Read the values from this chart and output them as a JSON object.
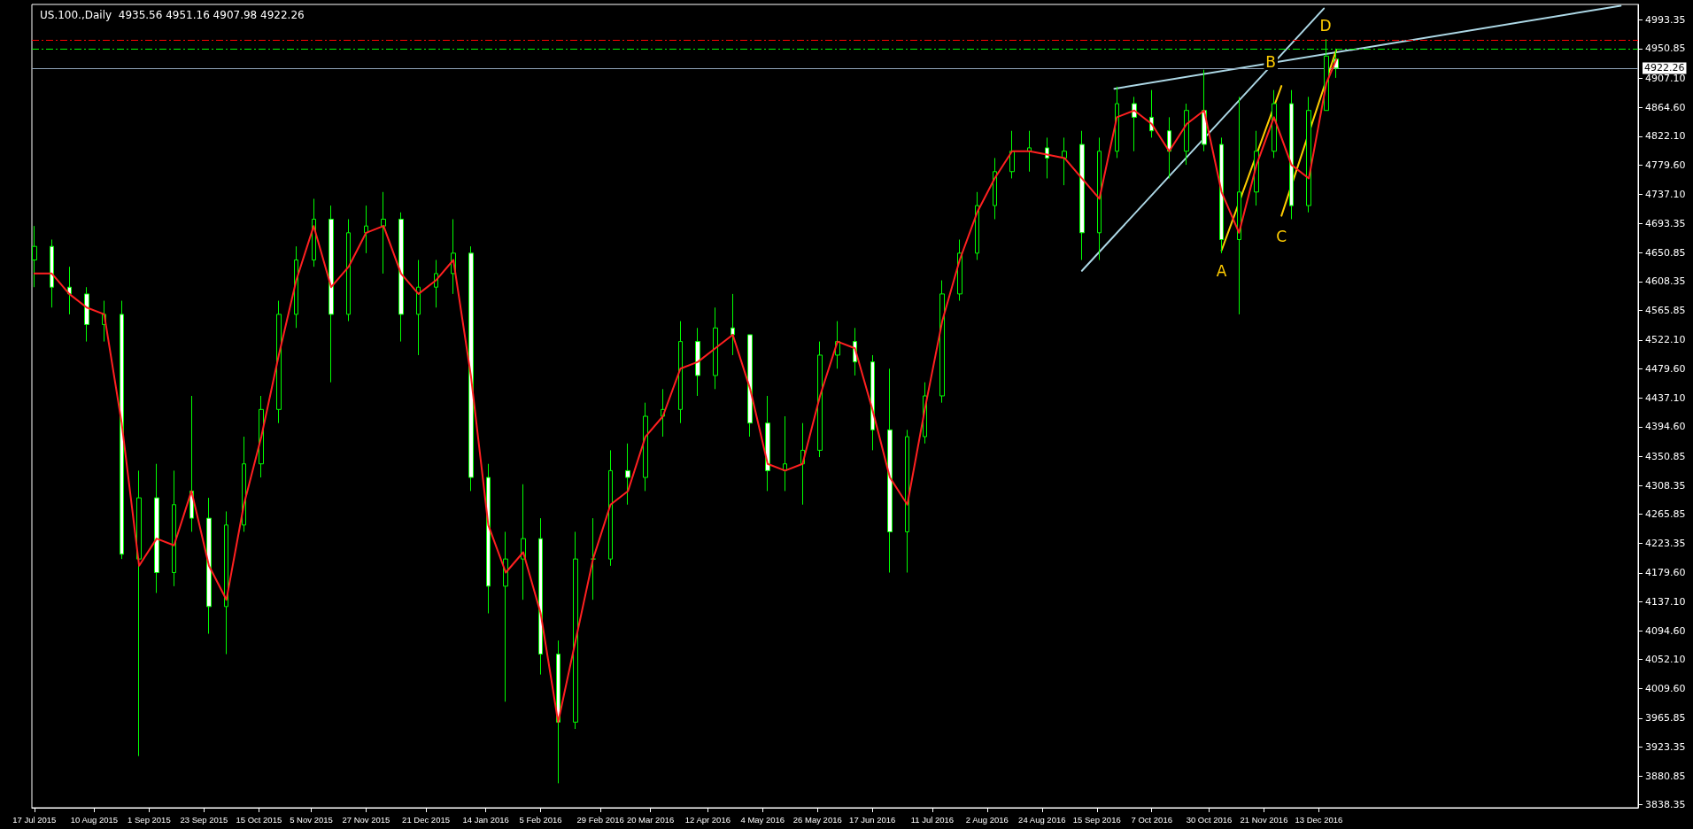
{
  "chart_data": {
    "type": "candlestick",
    "title": "US.100.,Daily  4935.56 4951.16 4907.98 4922.26",
    "color": "#00ff00",
    "x": [
      "2015-07-17",
      "2015-07-24",
      "2015-07-31",
      "2015-08-07",
      "2015-08-14",
      "2015-08-21",
      "2015-08-28",
      "2015-09-04",
      "2015-09-11",
      "2015-09-18",
      "2015-09-25",
      "2015-10-02",
      "2015-10-09",
      "2015-10-16",
      "2015-10-23",
      "2015-10-30",
      "2015-11-06",
      "2015-11-13",
      "2015-11-20",
      "2015-11-27",
      "2015-12-04",
      "2015-12-11",
      "2015-12-18",
      "2015-12-25",
      "2016-01-01",
      "2016-01-08",
      "2016-01-15",
      "2016-01-22",
      "2016-01-29",
      "2016-02-05",
      "2016-02-12",
      "2016-02-19",
      "2016-02-26",
      "2016-03-04",
      "2016-03-11",
      "2016-03-18",
      "2016-03-25",
      "2016-04-01",
      "2016-04-08",
      "2016-04-15",
      "2016-04-22",
      "2016-04-29",
      "2016-05-06",
      "2016-05-13",
      "2016-05-20",
      "2016-05-27",
      "2016-06-03",
      "2016-06-10",
      "2016-06-17",
      "2016-06-24",
      "2016-07-01",
      "2016-07-08",
      "2016-07-15",
      "2016-07-22",
      "2016-07-29",
      "2016-08-05",
      "2016-08-12",
      "2016-08-19",
      "2016-08-26",
      "2016-09-02",
      "2016-09-09",
      "2016-09-16",
      "2016-09-23",
      "2016-09-30",
      "2016-10-07",
      "2016-10-14",
      "2016-10-21",
      "2016-10-28",
      "2016-11-04",
      "2016-11-11",
      "2016-11-18",
      "2016-11-25",
      "2016-12-02",
      "2016-12-09",
      "2016-12-16",
      "2016-12-20"
    ],
    "ohlc": [
      [
        4640,
        4690,
        4600,
        4660
      ],
      [
        4660,
        4670,
        4570,
        4600
      ],
      [
        4600,
        4630,
        4560,
        4590
      ],
      [
        4590,
        4600,
        4520,
        4545
      ],
      [
        4545,
        4580,
        4520,
        4560
      ],
      [
        4560,
        4580,
        4200,
        4207
      ],
      [
        4200,
        4330,
        3910,
        4290
      ],
      [
        4290,
        4340,
        4150,
        4180
      ],
      [
        4180,
        4330,
        4160,
        4280
      ],
      [
        4300,
        4440,
        4240,
        4260
      ],
      [
        4260,
        4290,
        4090,
        4130
      ],
      [
        4130,
        4270,
        4060,
        4250
      ],
      [
        4250,
        4380,
        4240,
        4340
      ],
      [
        4340,
        4440,
        4320,
        4420
      ],
      [
        4420,
        4580,
        4400,
        4560
      ],
      [
        4560,
        4660,
        4540,
        4640
      ],
      [
        4640,
        4730,
        4630,
        4700
      ],
      [
        4700,
        4720,
        4460,
        4560
      ],
      [
        4560,
        4700,
        4550,
        4680
      ],
      [
        4680,
        4720,
        4650,
        4690
      ],
      [
        4690,
        4740,
        4620,
        4700
      ],
      [
        4700,
        4710,
        4520,
        4560
      ],
      [
        4560,
        4640,
        4500,
        4600
      ],
      [
        4600,
        4640,
        4570,
        4620
      ],
      [
        4620,
        4700,
        4590,
        4650
      ],
      [
        4650,
        4660,
        4300,
        4320
      ],
      [
        4320,
        4340,
        4120,
        4160
      ],
      [
        4160,
        4240,
        3990,
        4200
      ],
      [
        4200,
        4310,
        4140,
        4230
      ],
      [
        4230,
        4260,
        4030,
        4060
      ],
      [
        4060,
        4080,
        3870,
        3960
      ],
      [
        3960,
        4240,
        3950,
        4200
      ],
      [
        4200,
        4260,
        4140,
        4200
      ],
      [
        4200,
        4360,
        4190,
        4330
      ],
      [
        4330,
        4370,
        4280,
        4320
      ],
      [
        4320,
        4430,
        4300,
        4410
      ],
      [
        4410,
        4450,
        4380,
        4420
      ],
      [
        4420,
        4550,
        4400,
        4520
      ],
      [
        4520,
        4540,
        4440,
        4470
      ],
      [
        4470,
        4570,
        4450,
        4540
      ],
      [
        4540,
        4590,
        4500,
        4530
      ],
      [
        4530,
        4530,
        4380,
        4400
      ],
      [
        4400,
        4440,
        4300,
        4330
      ],
      [
        4330,
        4410,
        4300,
        4340
      ],
      [
        4340,
        4400,
        4280,
        4360
      ],
      [
        4360,
        4520,
        4350,
        4500
      ],
      [
        4500,
        4550,
        4480,
        4520
      ],
      [
        4520,
        4540,
        4470,
        4490
      ],
      [
        4490,
        4500,
        4360,
        4390
      ],
      [
        4390,
        4480,
        4180,
        4240
      ],
      [
        4240,
        4390,
        4180,
        4380
      ],
      [
        4380,
        4460,
        4370,
        4440
      ],
      [
        4440,
        4610,
        4430,
        4590
      ],
      [
        4590,
        4670,
        4580,
        4650
      ],
      [
        4650,
        4740,
        4640,
        4720
      ],
      [
        4720,
        4790,
        4700,
        4770
      ],
      [
        4770,
        4830,
        4760,
        4800
      ],
      [
        4800,
        4830,
        4770,
        4805
      ],
      [
        4805,
        4820,
        4760,
        4790
      ],
      [
        4790,
        4820,
        4750,
        4800
      ],
      [
        4810,
        4830,
        4640,
        4680
      ],
      [
        4680,
        4820,
        4640,
        4800
      ],
      [
        4800,
        4895,
        4790,
        4870
      ],
      [
        4870,
        4880,
        4800,
        4850
      ],
      [
        4850,
        4890,
        4820,
        4830
      ],
      [
        4830,
        4850,
        4760,
        4800
      ],
      [
        4800,
        4870,
        4780,
        4860
      ],
      [
        4860,
        4920,
        4800,
        4810
      ],
      [
        4810,
        4820,
        4650,
        4670
      ],
      [
        4670,
        4880,
        4560,
        4740
      ],
      [
        4740,
        4830,
        4720,
        4800
      ],
      [
        4800,
        4890,
        4790,
        4870
      ],
      [
        4870,
        4890,
        4700,
        4720
      ],
      [
        4720,
        4880,
        4710,
        4860
      ],
      [
        4860,
        4965,
        4860,
        4940
      ],
      [
        4935.56,
        4951.16,
        4907.98,
        4922.26
      ]
    ],
    "series": [
      {
        "type": "line",
        "color": "#ff2020",
        "x": [
          "2015-07-17",
          "2015-07-24",
          "2015-07-31",
          "2015-08-07",
          "2015-08-14",
          "2015-08-21",
          "2015-08-28",
          "2015-09-04",
          "2015-09-11",
          "2015-09-18",
          "2015-09-25",
          "2015-10-02",
          "2015-10-09",
          "2015-10-16",
          "2015-10-23",
          "2015-10-30",
          "2015-11-06",
          "2015-11-13",
          "2015-11-20",
          "2015-11-27",
          "2015-12-04",
          "2015-12-11",
          "2015-12-18",
          "2015-12-25",
          "2016-01-01",
          "2016-01-08",
          "2016-01-15",
          "2016-01-22",
          "2016-01-29",
          "2016-02-05",
          "2016-02-12",
          "2016-02-19",
          "2016-02-26",
          "2016-03-04",
          "2016-03-11",
          "2016-03-18",
          "2016-03-25",
          "2016-04-01",
          "2016-04-08",
          "2016-04-15",
          "2016-04-22",
          "2016-04-29",
          "2016-05-06",
          "2016-05-13",
          "2016-05-20",
          "2016-05-27",
          "2016-06-03",
          "2016-06-10",
          "2016-06-17",
          "2016-06-24",
          "2016-07-01",
          "2016-07-08",
          "2016-07-15",
          "2016-07-22",
          "2016-07-29",
          "2016-08-05",
          "2016-08-12",
          "2016-08-19",
          "2016-08-26",
          "2016-09-02",
          "2016-09-09",
          "2016-09-16",
          "2016-09-23",
          "2016-09-30",
          "2016-10-07",
          "2016-10-14",
          "2016-10-21",
          "2016-10-28",
          "2016-11-04",
          "2016-11-11",
          "2016-11-18",
          "2016-11-25",
          "2016-12-02",
          "2016-12-09",
          "2016-12-16",
          "2016-12-20"
        ],
        "values": [
          4620,
          4620,
          4590,
          4570,
          4560,
          4400,
          4190,
          4230,
          4220,
          4300,
          4190,
          4140,
          4280,
          4380,
          4500,
          4610,
          4690,
          4600,
          4630,
          4680,
          4690,
          4620,
          4590,
          4610,
          4640,
          4470,
          4250,
          4180,
          4210,
          4120,
          3960,
          4080,
          4200,
          4280,
          4300,
          4380,
          4410,
          4480,
          4490,
          4510,
          4530,
          4450,
          4340,
          4330,
          4340,
          4440,
          4520,
          4510,
          4420,
          4320,
          4280,
          4420,
          4550,
          4640,
          4710,
          4760,
          4800,
          4800,
          4795,
          4790,
          4760,
          4730,
          4850,
          4860,
          4840,
          4800,
          4840,
          4860,
          4740,
          4680,
          4780,
          4850,
          4780,
          4760,
          4900,
          4935
        ]
      },
      {
        "type": "line",
        "color": "#add8e6",
        "x": [
          "2016-09-09",
          "2016-12-15"
        ],
        "values": [
          4624,
          5010
        ]
      },
      {
        "type": "line",
        "color": "#add8e6",
        "x": [
          "2016-09-22",
          "2017-04-13"
        ],
        "values": [
          4892,
          5014
        ]
      },
      {
        "type": "line",
        "color": "#ffcc00",
        "x": [
          "2016-11-04",
          "2016-11-28"
        ],
        "values": [
          4654,
          4896
        ]
      },
      {
        "type": "line",
        "color": "#ffcc00",
        "x": [
          "2016-11-28",
          "2016-12-20"
        ],
        "values": [
          4705,
          4949
        ]
      }
    ],
    "ref_lines": [
      {
        "axis": "y",
        "value": 4963,
        "label": null,
        "color": "#ff0000",
        "line_style": "dashed"
      },
      {
        "axis": "y",
        "value": 4950.85,
        "label": null,
        "color": "#00ff00",
        "line_style": "dashed"
      },
      {
        "axis": "y",
        "value": 4922.26,
        "label": "4922.26",
        "color": "#8fa3b8",
        "line_style": "solid"
      }
    ],
    "annotations": [
      {
        "text": "A",
        "x": "2016-11-04",
        "y": 4654
      },
      {
        "text": "B",
        "x": "2016-11-28",
        "y": 4896
      },
      {
        "text": "C",
        "x": "2016-11-28",
        "y": 4705
      },
      {
        "text": "D",
        "x": "2016-12-20",
        "y": 4949
      }
    ],
    "xlim": [
      "2015-07-16",
      "2017-04-20"
    ],
    "xticks": [
      {
        "value": "2015-07-17",
        "label": "17 Jul 2015"
      },
      {
        "value": "2015-08-10",
        "label": "10 Aug 2015"
      },
      {
        "value": "2015-09-01",
        "label": "1 Sep 2015"
      },
      {
        "value": "2015-09-23",
        "label": "23 Sep 2015"
      },
      {
        "value": "2015-10-15",
        "label": "15 Oct 2015"
      },
      {
        "value": "2015-11-05",
        "label": "5 Nov 2015"
      },
      {
        "value": "2015-11-27",
        "label": "27 Nov 2015"
      },
      {
        "value": "2015-12-21",
        "label": "21 Dec 2015"
      },
      {
        "value": "2016-01-14",
        "label": "14 Jan 2016"
      },
      {
        "value": "2016-02-05",
        "label": "5 Feb 2016"
      },
      {
        "value": "2016-02-29",
        "label": "29 Feb 2016"
      },
      {
        "value": "2016-03-20",
        "label": "20 Mar 2016"
      },
      {
        "value": "2016-04-12",
        "label": "12 Apr 2016"
      },
      {
        "value": "2016-05-04",
        "label": "4 May 2016"
      },
      {
        "value": "2016-05-26",
        "label": "26 May 2016"
      },
      {
        "value": "2016-06-17",
        "label": "17 Jun 2016"
      },
      {
        "value": "2016-07-11",
        "label": "11 Jul 2016"
      },
      {
        "value": "2016-08-02",
        "label": "2 Aug 2016"
      },
      {
        "value": "2016-08-24",
        "label": "24 Aug 2016"
      },
      {
        "value": "2016-09-15",
        "label": "15 Sep 2016"
      },
      {
        "value": "2016-10-07",
        "label": "7 Oct 2016"
      },
      {
        "value": "2016-10-30",
        "label": "30 Oct 2016"
      },
      {
        "value": "2016-11-21",
        "label": "21 Nov 2016"
      },
      {
        "value": "2016-12-13",
        "label": "13 Dec 2016"
      }
    ],
    "ylim": [
      3834,
      5016
    ],
    "yticks": [
      3838.35,
      3880.85,
      3923.35,
      3965.85,
      {
        "value": 4009.6,
        "label": "4009.60"
      },
      {
        "value": 4052.1,
        "label": "4052.10"
      },
      {
        "value": 4094.6,
        "label": "4094.60"
      },
      {
        "value": 4137.1,
        "label": "4137.10"
      },
      {
        "value": 4179.6,
        "label": "4179.60"
      },
      4223.35,
      4265.85,
      4308.35,
      4350.85,
      {
        "value": 4394.6,
        "label": "4394.60"
      },
      {
        "value": 4437.1,
        "label": "4437.10"
      },
      {
        "value": 4479.6,
        "label": "4479.60"
      },
      {
        "value": 4522.1,
        "label": "4522.10"
      },
      4565.85,
      4608.35,
      4650.85,
      4693.35,
      {
        "value": 4737.1,
        "label": "4737.10"
      },
      {
        "value": 4779.6,
        "label": "4779.60"
      },
      {
        "value": 4822.1,
        "label": "4822.10"
      },
      {
        "value": 4864.6,
        "label": "4864.60"
      },
      {
        "value": 4907.1,
        "label": "4907.10"
      },
      4950.85,
      4993.35
    ]
  }
}
